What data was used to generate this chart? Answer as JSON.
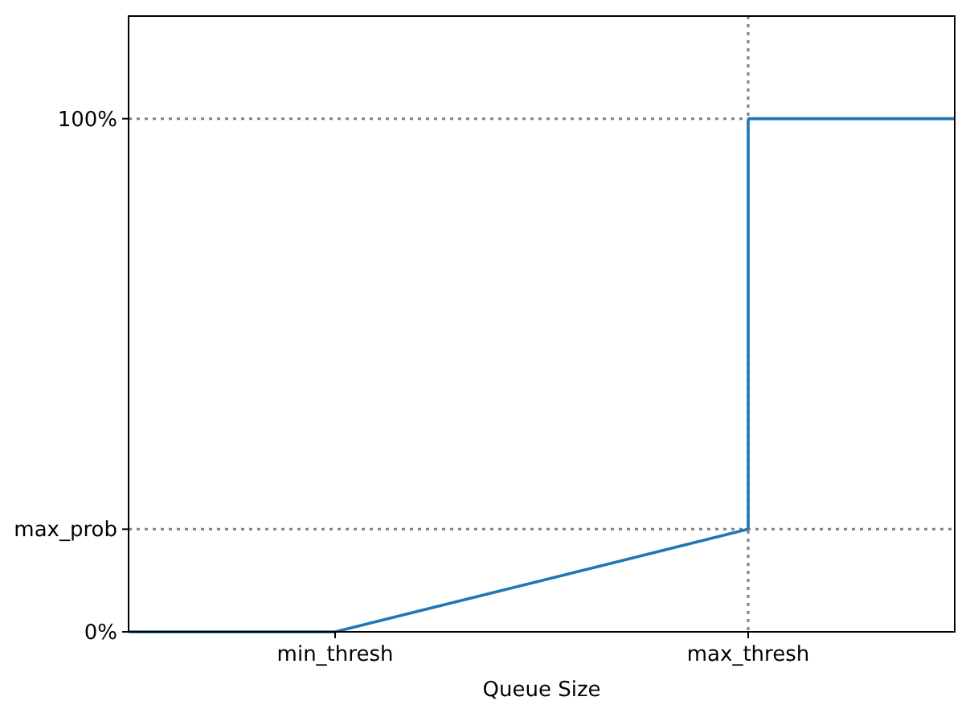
{
  "chart_data": {
    "type": "line",
    "xlabel": "Queue Size",
    "categories": [
      null,
      "min_thresh",
      null,
      "max_thresh",
      null
    ],
    "series": [
      {
        "color": "#1f77b4",
        "values": [
          0,
          0,
          0.1,
          0.2,
          null
        ]
      },
      {
        "color": "#1f77b4",
        "values": [
          null,
          null,
          null,
          1,
          1
        ],
        "errors": [
          null,
          null,
          null,
          [
            0.2,
            1
          ],
          null
        ]
      }
    ],
    "ylim": [
      0,
      1.2
    ],
    "yticks": [
      {
        "value": 0,
        "label": "0%"
      },
      {
        "value": 0.2,
        "label": "max_prob"
      },
      {
        "value": 1,
        "label": "100%"
      }
    ],
    "ref_lines": [
      {
        "axis": "y",
        "value": 0.2,
        "label": null,
        "color": "#808080",
        "line_style": "dotted"
      },
      {
        "axis": "y",
        "value": 1,
        "label": null,
        "color": "#808080",
        "line_style": "dotted"
      },
      {
        "axis": "x",
        "value": "max_thresh",
        "label": null,
        "color": "#808080",
        "line_style": "dotted"
      }
    ],
    "marker": "none",
    "line_style": "solid"
  }
}
